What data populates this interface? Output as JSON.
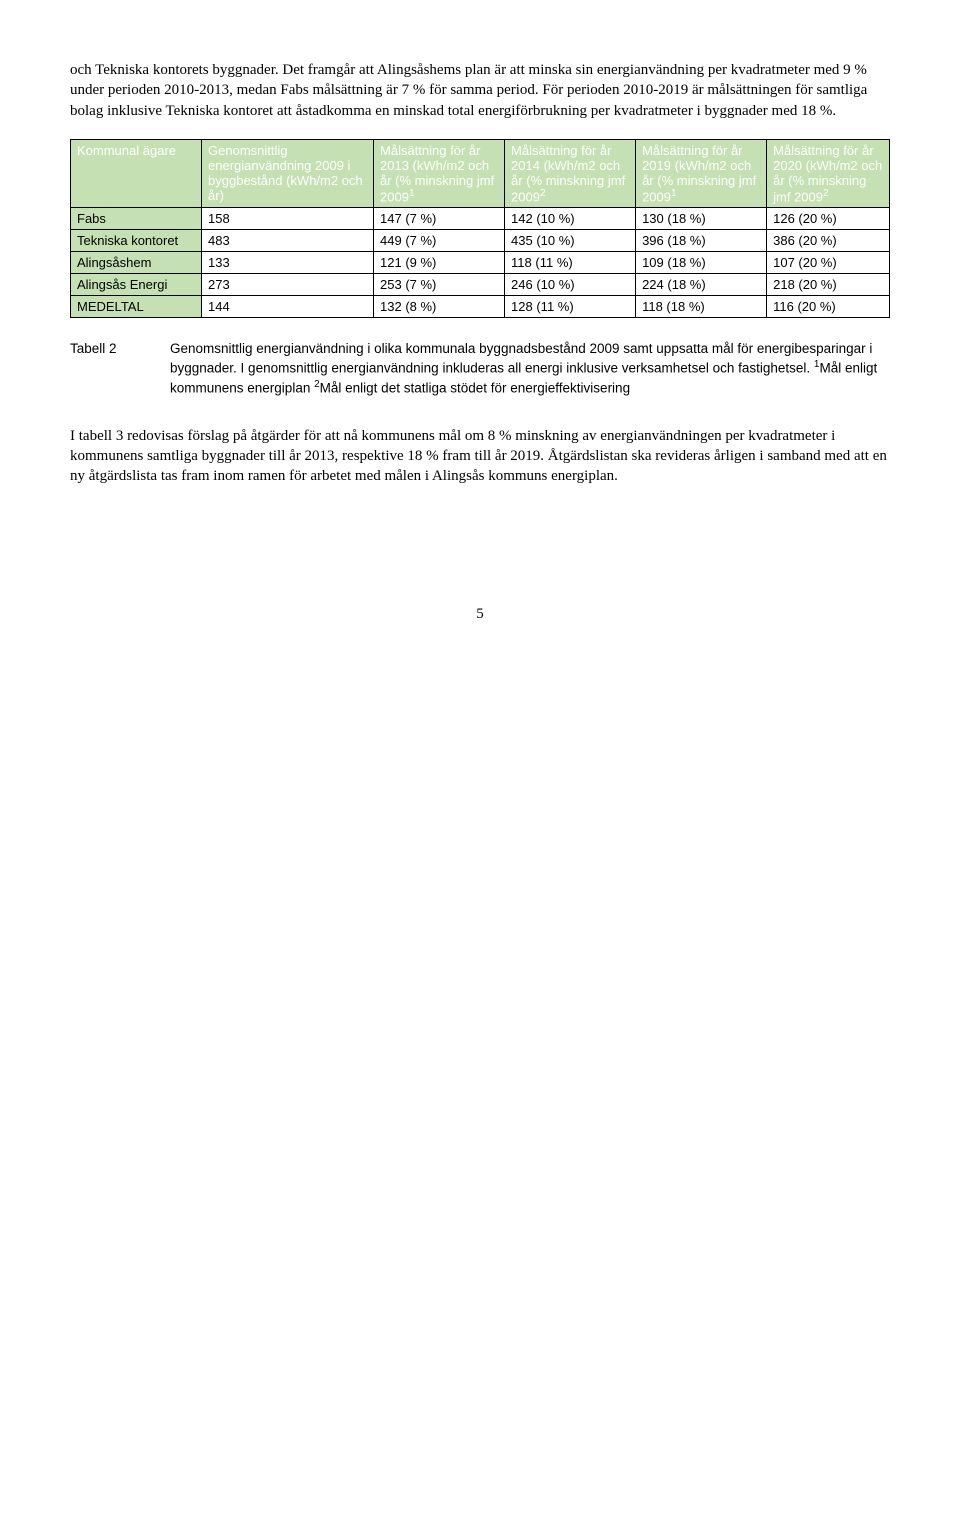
{
  "para1": "och Tekniska kontorets byggnader. Det framgår att Alingsåshems plan är att minska sin energianvändning per kvadratmeter med 9 % under perioden 2010-2013, medan Fabs målsättning är 7 % för samma period. För perioden 2010-2019 är målsättningen för samtliga bolag inklusive Tekniska kontoret att åstadkomma en minskad total energiförbrukning per kvadratmeter i byggnader med 18 %.",
  "table": {
    "header_bg": "#c5e0b3",
    "header_color": "#ffffff",
    "cell_border": "#000000",
    "col_widths": [
      "16%",
      "21%",
      "16%",
      "16%",
      "16%",
      "15%"
    ],
    "columns": [
      "Kommunal ägare",
      "Genomsnittlig energianvändning 2009 i byggbestånd (kWh/m2 och år)",
      "Målsättning för år 2013 (kWh/m2 och år (% minskning jmf 2009",
      "Målsättning för år 2014 (kWh/m2 och år (% minskning jmf 2009",
      "Målsättning för år 2019 (kWh/m2 och år (% minskning jmf 2009",
      "Målsättning för år 2020 (kWh/m2 och år (% minskning jmf 2009"
    ],
    "column_sup": [
      "",
      "",
      "1",
      "2",
      "1",
      "2"
    ],
    "rows": [
      {
        "label": "Fabs",
        "v": [
          "158",
          "147 (7 %)",
          "142 (10 %)",
          "130 (18 %)",
          "126 (20 %)"
        ]
      },
      {
        "label": "Tekniska kontoret",
        "v": [
          "483",
          "449 (7 %)",
          "435 (10 %)",
          "396 (18 %)",
          "386 (20 %)"
        ]
      },
      {
        "label": "Alingsåshem",
        "v": [
          "133",
          "121 (9 %)",
          "118 (11 %)",
          "109 (18 %)",
          "107 (20 %)"
        ]
      },
      {
        "label": "Alingsås Energi",
        "v": [
          "273",
          "253 (7 %)",
          "246 (10 %)",
          "224 (18 %)",
          "218 (20 %)"
        ]
      },
      {
        "label": "MEDELTAL",
        "v": [
          "144",
          "132 (8 %)",
          "128  (11 %)",
          "118 (18 %)",
          "116 (20 %)"
        ]
      }
    ]
  },
  "caption": {
    "label": "Tabell 2",
    "text_pre": "Genomsnittlig energianvändning i olika kommunala byggnadsbestånd 2009 samt uppsatta mål för energibesparingar i byggnader. I genomsnittlig energianvändning inkluderas all energi inklusive verksamhetsel och fastighetsel. ",
    "sup1": "1",
    "text_mid": "Mål enligt kommunens energiplan ",
    "sup2": "2",
    "text_post": "Mål enligt det statliga stödet för energieffektivisering"
  },
  "para2": "I tabell 3 redovisas förslag på åtgärder för att nå kommunens mål om 8 % minskning av energianvändningen per kvadratmeter i kommunens samtliga byggnader till år 2013, respektive 18 % fram till år 2019. Åtgärdslistan ska revideras årligen i samband med att en ny åtgärdslista tas fram inom ramen för arbetet med målen i Alingsås kommuns energiplan.",
  "page_number": "5"
}
